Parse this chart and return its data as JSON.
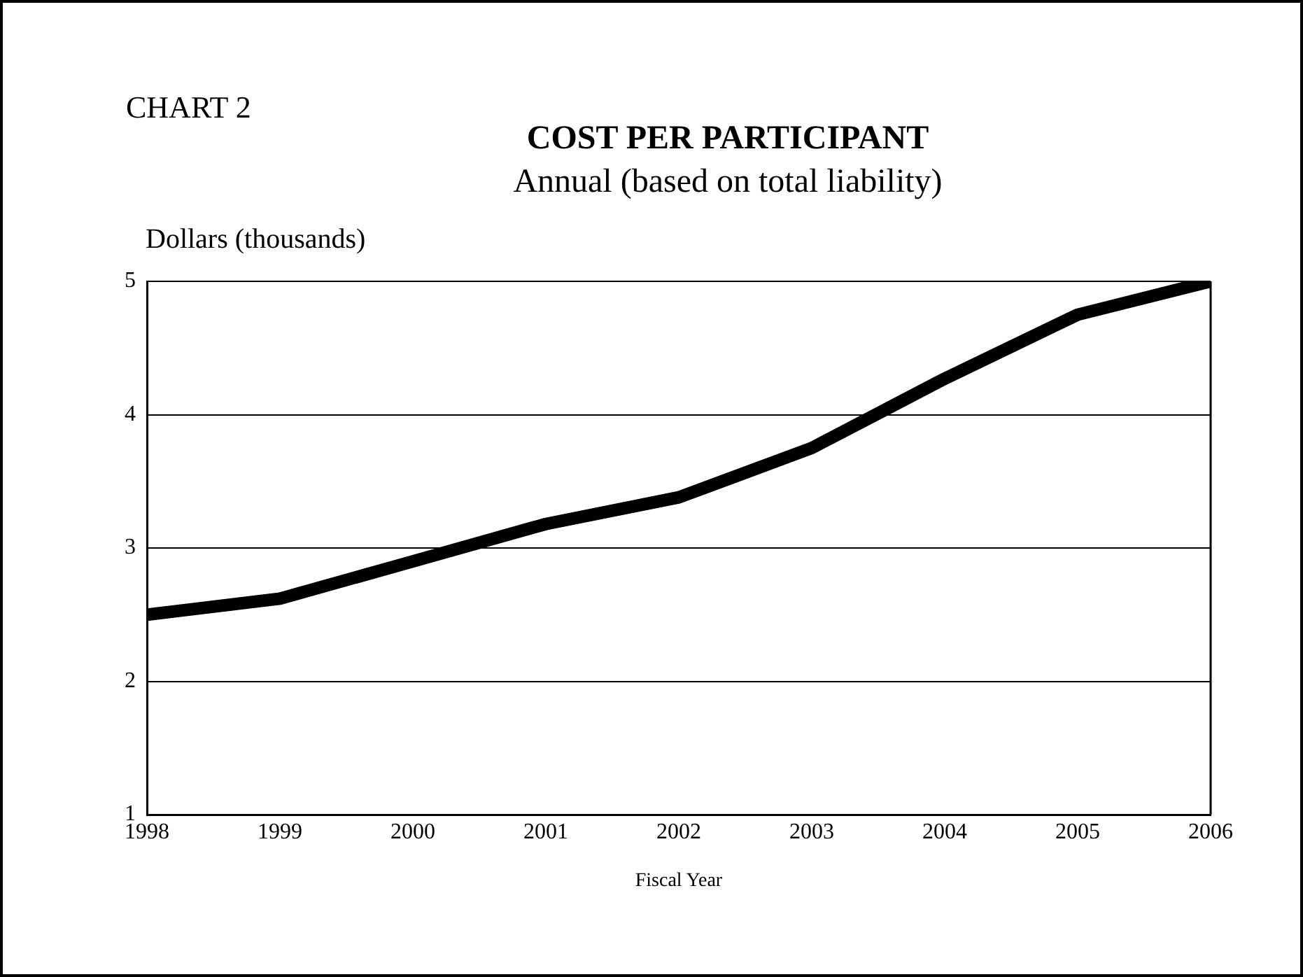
{
  "chart_data": {
    "type": "line",
    "title": "COST PER PARTICIPANT",
    "subtitle": "Annual (based on total liability)",
    "ylabel": "Dollars (thousands)",
    "xlabel": "Fiscal Year",
    "annotations": [
      "CHART 2"
    ],
    "x": [
      1998,
      1999,
      2000,
      2001,
      2002,
      2003,
      2004,
      2005,
      2006
    ],
    "series": [
      {
        "color": "#000000",
        "values": [
          2.5,
          2.62,
          2.9,
          3.18,
          3.38,
          3.75,
          4.27,
          4.75,
          5.0
        ]
      }
    ],
    "xlim": [
      1998,
      2006
    ],
    "xticks": [
      1998,
      1999,
      2000,
      2001,
      2002,
      2003,
      2004,
      2005,
      2006
    ],
    "ylim": [
      1,
      5
    ],
    "yticks": [
      1,
      2,
      3,
      4,
      5
    ],
    "grid": "y",
    "legend": false,
    "marker": "none",
    "line_style": "solid"
  }
}
